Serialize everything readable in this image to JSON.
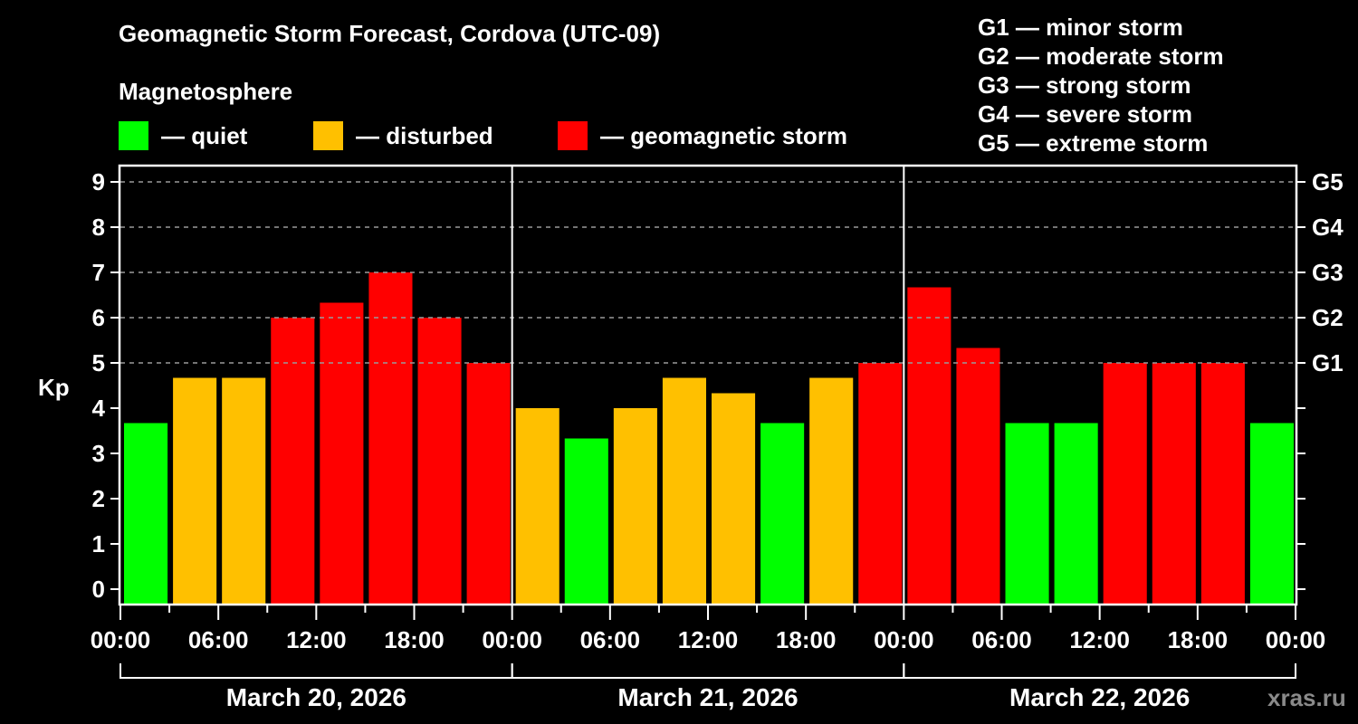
{
  "title": "Geomagnetic Storm Forecast, Cordova (UTC-09)",
  "subtitle": "Magnetosphere",
  "legend": [
    {
      "label": "— quiet",
      "color": "#00ff00"
    },
    {
      "label": "— disturbed",
      "color": "#ffc000"
    },
    {
      "label": "— geomagnetic storm",
      "color": "#ff0000"
    }
  ],
  "g_legend": [
    "G1 — minor storm",
    "G2 — moderate storm",
    "G3 — strong storm",
    "G4 — severe storm",
    "G5 — extreme storm"
  ],
  "watermark": "xras.ru",
  "chart_data": {
    "type": "bar",
    "title": "Geomagnetic Storm Forecast, Cordova (UTC-09)",
    "ylabel": "Kp",
    "xlabel": "",
    "ylim": [
      0,
      9
    ],
    "yticks": [
      0,
      1,
      2,
      3,
      4,
      5,
      6,
      7,
      8,
      9
    ],
    "right_axis_labels": [
      {
        "kp": 5,
        "label": "G1"
      },
      {
        "kp": 6,
        "label": "G2"
      },
      {
        "kp": 7,
        "label": "G3"
      },
      {
        "kp": 8,
        "label": "G4"
      },
      {
        "kp": 9,
        "label": "G5"
      }
    ],
    "grid": "dashed horizontal at Kp 5-9",
    "x_tick_labels": [
      "00:00",
      "06:00",
      "12:00",
      "18:00",
      "00:00",
      "06:00",
      "12:00",
      "18:00",
      "00:00",
      "06:00",
      "12:00",
      "18:00",
      "00:00"
    ],
    "days": [
      "March 20, 2026",
      "March 21, 2026",
      "March 22, 2026"
    ],
    "categories": [
      "Mar 20 00-03",
      "Mar 20 03-06",
      "Mar 20 06-09",
      "Mar 20 09-12",
      "Mar 20 12-15",
      "Mar 20 15-18",
      "Mar 20 18-21",
      "Mar 20 21-24",
      "Mar 21 00-03",
      "Mar 21 03-06",
      "Mar 21 06-09",
      "Mar 21 09-12",
      "Mar 21 12-15",
      "Mar 21 15-18",
      "Mar 21 18-21",
      "Mar 21 21-24",
      "Mar 22 00-03",
      "Mar 22 03-06",
      "Mar 22 06-09",
      "Mar 22 09-12",
      "Mar 22 12-15",
      "Mar 22 15-18",
      "Mar 22 18-21",
      "Mar 22 21-24"
    ],
    "values": [
      3.67,
      4.67,
      4.67,
      6.0,
      6.33,
      7.0,
      6.0,
      5.0,
      4.0,
      3.33,
      4.0,
      4.67,
      4.33,
      3.67,
      4.67,
      5.0,
      6.67,
      5.33,
      3.67,
      3.67,
      5.0,
      5.0,
      5.0,
      3.67
    ],
    "status": [
      "quiet",
      "disturbed",
      "disturbed",
      "storm",
      "storm",
      "storm",
      "storm",
      "storm",
      "disturbed",
      "quiet",
      "disturbed",
      "disturbed",
      "disturbed",
      "quiet",
      "disturbed",
      "storm",
      "storm",
      "storm",
      "quiet",
      "quiet",
      "storm",
      "storm",
      "storm",
      "quiet"
    ],
    "colors": {
      "quiet": "#00ff00",
      "disturbed": "#ffc000",
      "storm": "#ff0000"
    }
  }
}
